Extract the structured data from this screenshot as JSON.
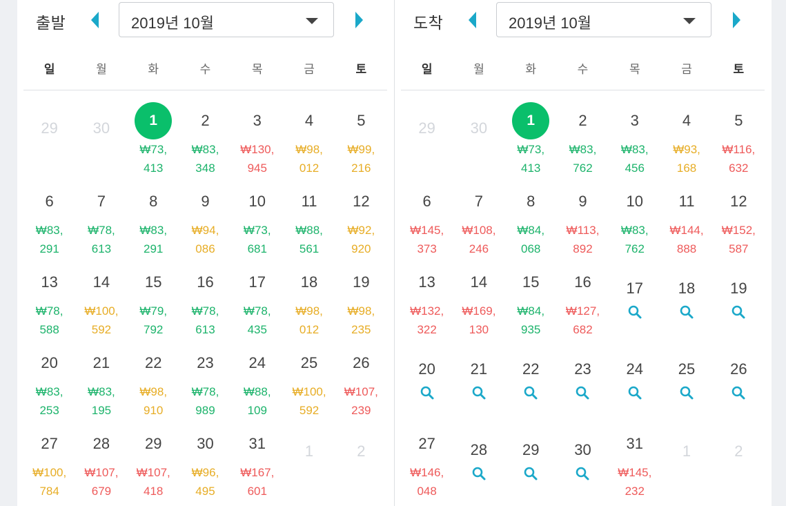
{
  "departure": {
    "title": "출발",
    "month_value": "2019년 10월",
    "weekdays": [
      "일",
      "월",
      "화",
      "수",
      "목",
      "금",
      "토"
    ],
    "weeks": [
      [
        {
          "day": "29",
          "type": "other"
        },
        {
          "day": "30",
          "type": "other"
        },
        {
          "day": "1",
          "type": "selected",
          "price": "₩73,\n413",
          "color": "g"
        },
        {
          "day": "2",
          "price": "₩83,\n348",
          "color": "g"
        },
        {
          "day": "3",
          "price": "₩130,\n945",
          "color": "r"
        },
        {
          "day": "4",
          "price": "₩98,\n012",
          "color": "y"
        },
        {
          "day": "5",
          "price": "₩99,\n216",
          "color": "y"
        }
      ],
      [
        {
          "day": "6",
          "price": "₩83,\n291",
          "color": "g"
        },
        {
          "day": "7",
          "price": "₩78,\n613",
          "color": "g"
        },
        {
          "day": "8",
          "price": "₩83,\n291",
          "color": "g"
        },
        {
          "day": "9",
          "price": "₩94,\n086",
          "color": "y"
        },
        {
          "day": "10",
          "price": "₩73,\n681",
          "color": "g"
        },
        {
          "day": "11",
          "price": "₩88,\n561",
          "color": "g"
        },
        {
          "day": "12",
          "price": "₩92,\n920",
          "color": "y"
        }
      ],
      [
        {
          "day": "13",
          "price": "₩78,\n588",
          "color": "g"
        },
        {
          "day": "14",
          "price": "₩100,\n592",
          "color": "y"
        },
        {
          "day": "15",
          "price": "₩79,\n792",
          "color": "g"
        },
        {
          "day": "16",
          "price": "₩78,\n613",
          "color": "g"
        },
        {
          "day": "17",
          "price": "₩78,\n435",
          "color": "g"
        },
        {
          "day": "18",
          "price": "₩98,\n012",
          "color": "y"
        },
        {
          "day": "19",
          "price": "₩98,\n235",
          "color": "y"
        }
      ],
      [
        {
          "day": "20",
          "price": "₩83,\n253",
          "color": "g"
        },
        {
          "day": "21",
          "price": "₩83,\n195",
          "color": "g"
        },
        {
          "day": "22",
          "price": "₩98,\n910",
          "color": "y"
        },
        {
          "day": "23",
          "price": "₩78,\n989",
          "color": "g"
        },
        {
          "day": "24",
          "price": "₩88,\n109",
          "color": "g"
        },
        {
          "day": "25",
          "price": "₩100,\n592",
          "color": "y"
        },
        {
          "day": "26",
          "price": "₩107,\n239",
          "color": "r"
        }
      ],
      [
        {
          "day": "27",
          "price": "₩100,\n784",
          "color": "y"
        },
        {
          "day": "28",
          "price": "₩107,\n679",
          "color": "r"
        },
        {
          "day": "29",
          "price": "₩107,\n418",
          "color": "r"
        },
        {
          "day": "30",
          "price": "₩96,\n495",
          "color": "y"
        },
        {
          "day": "31",
          "price": "₩167,\n601",
          "color": "r"
        },
        {
          "day": "1",
          "type": "other"
        },
        {
          "day": "2",
          "type": "other"
        }
      ]
    ]
  },
  "arrival": {
    "title": "도착",
    "month_value": "2019년 10월",
    "weekdays": [
      "일",
      "월",
      "화",
      "수",
      "목",
      "금",
      "토"
    ],
    "weeks": [
      [
        {
          "day": "29",
          "type": "other"
        },
        {
          "day": "30",
          "type": "other"
        },
        {
          "day": "1",
          "type": "selected",
          "price": "₩73,\n413",
          "color": "g"
        },
        {
          "day": "2",
          "price": "₩83,\n762",
          "color": "g"
        },
        {
          "day": "3",
          "price": "₩83,\n456",
          "color": "g"
        },
        {
          "day": "4",
          "price": "₩93,\n168",
          "color": "y"
        },
        {
          "day": "5",
          "price": "₩116,\n632",
          "color": "r"
        }
      ],
      [
        {
          "day": "6",
          "price": "₩145,\n373",
          "color": "r"
        },
        {
          "day": "7",
          "price": "₩108,\n246",
          "color": "r"
        },
        {
          "day": "8",
          "price": "₩84,\n068",
          "color": "g"
        },
        {
          "day": "9",
          "price": "₩113,\n892",
          "color": "r"
        },
        {
          "day": "10",
          "price": "₩83,\n762",
          "color": "g"
        },
        {
          "day": "11",
          "price": "₩144,\n888",
          "color": "r"
        },
        {
          "day": "12",
          "price": "₩152,\n587",
          "color": "r"
        }
      ],
      [
        {
          "day": "13",
          "price": "₩132,\n322",
          "color": "r"
        },
        {
          "day": "14",
          "price": "₩169,\n130",
          "color": "r"
        },
        {
          "day": "15",
          "price": "₩84,\n935",
          "color": "g"
        },
        {
          "day": "16",
          "price": "₩127,\n682",
          "color": "r"
        },
        {
          "day": "17",
          "type": "search"
        },
        {
          "day": "18",
          "type": "search"
        },
        {
          "day": "19",
          "type": "search"
        }
      ],
      [
        {
          "day": "20",
          "type": "search"
        },
        {
          "day": "21",
          "type": "search"
        },
        {
          "day": "22",
          "type": "search"
        },
        {
          "day": "23",
          "type": "search"
        },
        {
          "day": "24",
          "type": "search"
        },
        {
          "day": "25",
          "type": "search"
        },
        {
          "day": "26",
          "type": "search"
        }
      ],
      [
        {
          "day": "27",
          "price": "₩146,\n048",
          "color": "r"
        },
        {
          "day": "28",
          "type": "search"
        },
        {
          "day": "29",
          "type": "search"
        },
        {
          "day": "30",
          "type": "search"
        },
        {
          "day": "31",
          "price": "₩145,\n232",
          "color": "r"
        },
        {
          "day": "1",
          "type": "other"
        },
        {
          "day": "2",
          "type": "other"
        }
      ]
    ]
  },
  "colors": {
    "green": "#1cb36b",
    "yellow": "#e7ad26",
    "red": "#ee5a5a",
    "selected": "#0abf6b",
    "nav_arrow": "#1aa8c9",
    "search_icon": "#1aa8c9"
  },
  "icons": {
    "prev": "triangle-left-icon",
    "next": "triangle-right-icon",
    "search": "magnifier-icon"
  }
}
